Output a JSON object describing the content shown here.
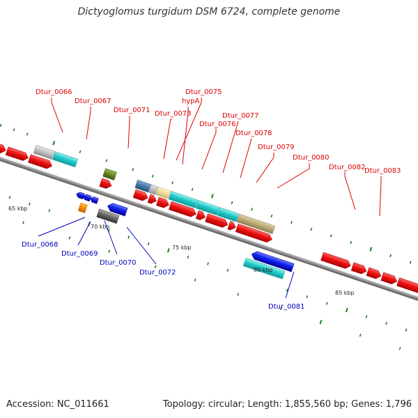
{
  "title": "Dictyoglomus turgidum DSM 6724, complete genome",
  "footer": {
    "accession": "Accession: NC_011661",
    "topology": "Topology: circular; Length: 1,855,560 bp; Genes: 1,796"
  },
  "scale_labels": [
    "65 kbp",
    "70 kbp",
    "75 kbp",
    "80 kbp",
    "85 kbp"
  ],
  "colors": {
    "forward_label": "#dd0000",
    "reverse_label": "#0000bb",
    "backbone": "#8a8a8a",
    "tick": "#1e7a1e",
    "red_gene": "#ee1111",
    "blue_gene": "#1122ee",
    "cyan_feature": "#22cccc",
    "gray_feature": "#c0c0c0",
    "olive_feature": "#668822",
    "steel_feature": "#4477aa",
    "khaki_feature": "#bbaa77",
    "cream_feature": "#eedd99",
    "orange_feature": "#ff8800",
    "dark_gray_feature": "#666666"
  },
  "forward_labels": [
    "Dtur_0066",
    "Dtur_0067",
    "Dtur_0071",
    "Dtur_0073",
    "Dtur_0075",
    "hypA",
    "Dtur_0076",
    "Dtur_0077",
    "Dtur_0078",
    "Dtur_0079",
    "Dtur_0080",
    "Dtur_0082",
    "Dtur_0083"
  ],
  "reverse_labels": [
    "Dtur_0068",
    "Dtur_0069",
    "Dtur_0070",
    "Dtur_0072",
    "Dtur_0081"
  ]
}
